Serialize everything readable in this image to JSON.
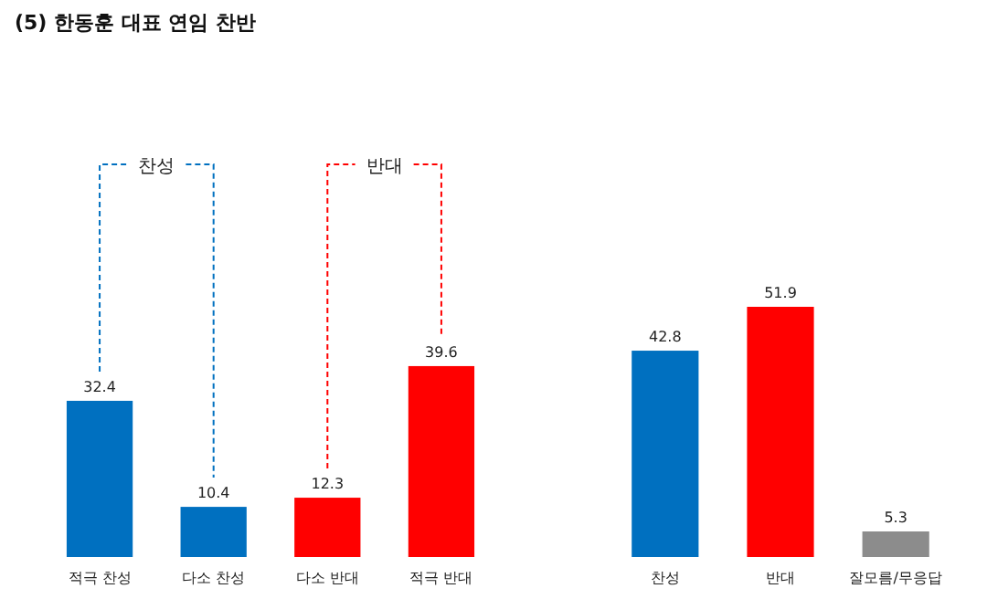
{
  "chart_data": [
    {
      "type": "bar",
      "title": "(5) 한동훈 대표 연임 찬반",
      "categories": [
        "적극 찬성",
        "다소 찬성",
        "다소 반대",
        "적극 반대"
      ],
      "values": [
        32.4,
        10.4,
        12.3,
        39.6
      ],
      "colors": [
        "#0070c0",
        "#0070c0",
        "#ff0000",
        "#ff0000"
      ],
      "data_labels": true,
      "annotations": [
        "찬성",
        "반대"
      ]
    },
    {
      "type": "bar",
      "categories": [
        "찬성",
        "반대",
        "잘모름/무응답"
      ],
      "values": [
        42.8,
        51.9,
        5.3
      ],
      "colors": [
        "#0070c0",
        "#ff0000",
        "#8c8c8c"
      ],
      "data_labels": true
    }
  ]
}
